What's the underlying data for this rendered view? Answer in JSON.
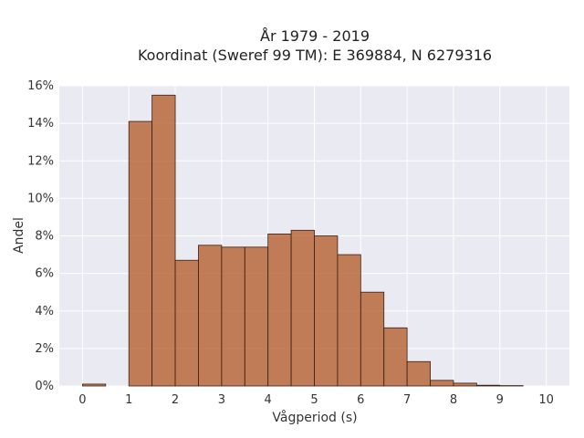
{
  "chart_data": {
    "type": "bar",
    "title": [
      "År 1979 - 2019",
      "Koordinat (Sweref 99 TM): E 369884, N 6279316"
    ],
    "xlabel": "Vågperiod (s)",
    "ylabel": "Andel",
    "xlim": [
      -0.5,
      10.5
    ],
    "ylim": [
      0,
      0.16
    ],
    "xticks": [
      0,
      1,
      2,
      3,
      4,
      5,
      6,
      7,
      8,
      9,
      10
    ],
    "xtick_labels": [
      "0",
      "1",
      "2",
      "3",
      "4",
      "5",
      "6",
      "7",
      "8",
      "9",
      "10"
    ],
    "yticks": [
      0,
      0.02,
      0.04,
      0.06,
      0.08,
      0.1,
      0.12,
      0.14,
      0.16
    ],
    "ytick_labels": [
      "0%",
      "2%",
      "4%",
      "6%",
      "8%",
      "10%",
      "12%",
      "14%",
      "16%"
    ],
    "bin_width": 0.5,
    "bins": [
      {
        "start": 0.0,
        "value": 0.001
      },
      {
        "start": 1.0,
        "value": 0.141
      },
      {
        "start": 1.5,
        "value": 0.155
      },
      {
        "start": 2.0,
        "value": 0.067
      },
      {
        "start": 2.5,
        "value": 0.075
      },
      {
        "start": 3.0,
        "value": 0.074
      },
      {
        "start": 3.5,
        "value": 0.074
      },
      {
        "start": 4.0,
        "value": 0.081
      },
      {
        "start": 4.5,
        "value": 0.083
      },
      {
        "start": 5.0,
        "value": 0.08
      },
      {
        "start": 5.5,
        "value": 0.07
      },
      {
        "start": 6.0,
        "value": 0.05
      },
      {
        "start": 6.5,
        "value": 0.031
      },
      {
        "start": 7.0,
        "value": 0.013
      },
      {
        "start": 7.5,
        "value": 0.003
      },
      {
        "start": 8.0,
        "value": 0.0015
      },
      {
        "start": 8.5,
        "value": 0.0004
      },
      {
        "start": 9.0,
        "value": 0.0002
      }
    ],
    "grid": true,
    "colors": {
      "bar": "#b5602f",
      "background": "#eaeaf2"
    }
  }
}
